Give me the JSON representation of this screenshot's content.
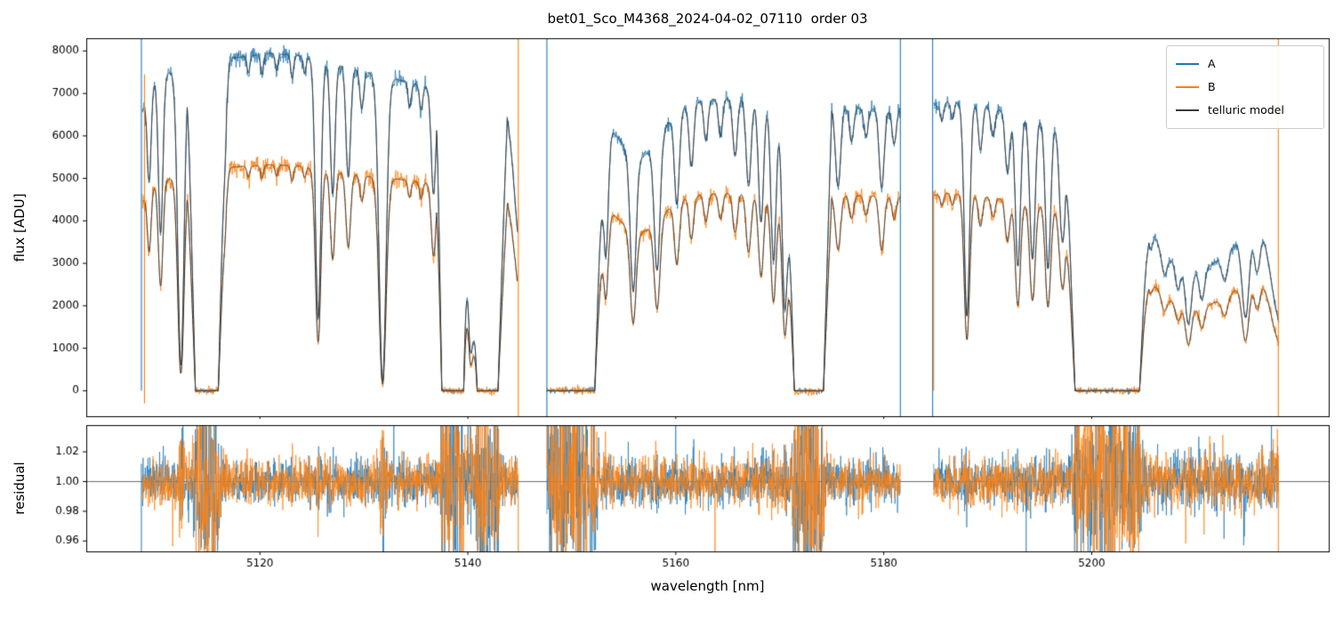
{
  "chart_data": [
    {
      "type": "line",
      "title": "bet01_Sco_M4368_2024-04-02_07110  order 03",
      "ylabel": "flux [ADU]",
      "xlim": [
        5103.3,
        5222.8
      ],
      "ylim": [
        -600,
        8300
      ],
      "xticks": [
        5120,
        5140,
        5160,
        5180,
        5200
      ],
      "xtick_labels": [
        "5120",
        "5140",
        "5160",
        "5180",
        "5200"
      ],
      "yticks": [
        0,
        1000,
        2000,
        3000,
        4000,
        5000,
        6000,
        7000,
        8000
      ],
      "ytick_labels": [
        "0",
        "1000",
        "2000",
        "3000",
        "4000",
        "5000",
        "6000",
        "7000",
        "8000"
      ],
      "grid": false,
      "legend": {
        "position": "upper right",
        "entries": [
          "A",
          "B",
          "telluric model"
        ]
      },
      "series": [
        {
          "name": "A",
          "color": "#1f77b4"
        },
        {
          "name": "B",
          "color": "#ff7f0e"
        },
        {
          "name": "telluric model",
          "color": "#3a3a3a"
        }
      ],
      "segments_nm": [
        [
          5108.7,
          5144.8
        ],
        [
          5147.6,
          5181.6
        ],
        [
          5184.8,
          5218.0
        ]
      ],
      "continuum_A_ADU": [
        [
          5108.7,
          6600
        ],
        [
          5110,
          7400
        ],
        [
          5113,
          7620
        ],
        [
          5117,
          7820
        ],
        [
          5121,
          7950
        ],
        [
          5124,
          7880
        ],
        [
          5127,
          7720
        ],
        [
          5130,
          7520
        ],
        [
          5133,
          7340
        ],
        [
          5136,
          7150
        ],
        [
          5140,
          7000
        ],
        [
          5144.8,
          6900
        ],
        [
          5147.6,
          6520
        ],
        [
          5151,
          6560
        ],
        [
          5155,
          6660
        ],
        [
          5159,
          6760
        ],
        [
          5163,
          6860
        ],
        [
          5166,
          6900
        ],
        [
          5169,
          6820
        ],
        [
          5173,
          6720
        ],
        [
          5177,
          6660
        ],
        [
          5181.6,
          6600
        ],
        [
          5184.8,
          6650
        ],
        [
          5186,
          6800
        ],
        [
          5189,
          6760
        ],
        [
          5192,
          6560
        ],
        [
          5195,
          6420
        ],
        [
          5199,
          6260
        ],
        [
          5203,
          6160
        ],
        [
          5208,
          6100
        ],
        [
          5213,
          6050
        ],
        [
          5218,
          6000
        ]
      ],
      "continuum_B_ADU": [
        [
          5108.7,
          4450
        ],
        [
          5110,
          4900
        ],
        [
          5113,
          5120
        ],
        [
          5117,
          5260
        ],
        [
          5121,
          5320
        ],
        [
          5124,
          5290
        ],
        [
          5127,
          5160
        ],
        [
          5130,
          5060
        ],
        [
          5133,
          4990
        ],
        [
          5136,
          4890
        ],
        [
          5140,
          4810
        ],
        [
          5144.8,
          4760
        ],
        [
          5147.6,
          4460
        ],
        [
          5151,
          4490
        ],
        [
          5155,
          4530
        ],
        [
          5159,
          4580
        ],
        [
          5163,
          4630
        ],
        [
          5166,
          4660
        ],
        [
          5169,
          4640
        ],
        [
          5173,
          4610
        ],
        [
          5177,
          4600
        ],
        [
          5181.6,
          4580
        ],
        [
          5184.8,
          4600
        ],
        [
          5186,
          4650
        ],
        [
          5189,
          4610
        ],
        [
          5192,
          4490
        ],
        [
          5195,
          4390
        ],
        [
          5199,
          4290
        ],
        [
          5203,
          4230
        ],
        [
          5208,
          4190
        ],
        [
          5213,
          4150
        ],
        [
          5218,
          4100
        ]
      ],
      "telluric_absorption_lines": [
        [
          5109.35,
          0.3,
          0.18
        ],
        [
          5110.45,
          0.5,
          0.22
        ],
        [
          5112.4,
          0.92,
          0.3
        ],
        [
          5116.7,
          0.18,
          0.18
        ],
        [
          5118.9,
          0.05,
          0.14
        ],
        [
          5120.2,
          0.06,
          0.14
        ],
        [
          5121.6,
          0.05,
          0.14
        ],
        [
          5123.1,
          0.07,
          0.14
        ],
        [
          5124.3,
          0.05,
          0.14
        ],
        [
          5125.6,
          0.78,
          0.26
        ],
        [
          5127.0,
          0.4,
          0.22
        ],
        [
          5128.5,
          0.34,
          0.22
        ],
        [
          5129.8,
          0.12,
          0.18
        ],
        [
          5131.8,
          0.97,
          0.34
        ],
        [
          5134.4,
          0.08,
          0.15
        ],
        [
          5135.5,
          0.08,
          0.15
        ],
        [
          5136.7,
          0.35,
          0.22
        ],
        [
          5140.25,
          0.82,
          0.35
        ],
        [
          5145.2,
          0.55,
          0.7
        ],
        [
          5153.25,
          0.5,
          0.25
        ],
        [
          5155.9,
          0.58,
          0.28
        ],
        [
          5156.5,
          0.18,
          2.0
        ],
        [
          5158.2,
          0.52,
          0.28
        ],
        [
          5160.1,
          0.33,
          0.24
        ],
        [
          5161.5,
          0.22,
          0.22
        ],
        [
          5162.9,
          0.14,
          0.2
        ],
        [
          5164.3,
          0.13,
          0.2
        ],
        [
          5165.7,
          0.2,
          0.22
        ],
        [
          5167.0,
          0.3,
          0.24
        ],
        [
          5168.2,
          0.42,
          0.25
        ],
        [
          5169.4,
          0.55,
          0.26
        ],
        [
          5170.5,
          0.72,
          0.28
        ],
        [
          5175.6,
          0.28,
          0.25
        ],
        [
          5176.9,
          0.12,
          0.2
        ],
        [
          5178.3,
          0.1,
          0.2
        ],
        [
          5179.8,
          0.28,
          0.24
        ],
        [
          5181.0,
          0.12,
          0.2
        ],
        [
          5185.6,
          0.06,
          0.15
        ],
        [
          5186.6,
          0.06,
          0.15
        ],
        [
          5188.0,
          0.74,
          0.26
        ],
        [
          5189.3,
          0.16,
          0.2
        ],
        [
          5190.5,
          0.1,
          0.2
        ],
        [
          5191.9,
          0.22,
          0.22
        ],
        [
          5192.9,
          0.55,
          0.25
        ],
        [
          5194.3,
          0.52,
          0.26
        ],
        [
          5195.8,
          0.55,
          0.26
        ],
        [
          5197.2,
          0.45,
          0.3
        ],
        [
          5205.6,
          0.18,
          0.25
        ],
        [
          5206.5,
          0.2,
          1.2
        ],
        [
          5207.0,
          0.15,
          0.25
        ],
        [
          5208.3,
          0.2,
          0.25
        ],
        [
          5209.3,
          0.45,
          0.28
        ],
        [
          5209.5,
          0.5,
          3.0
        ],
        [
          5210.6,
          0.25,
          0.25
        ],
        [
          5212.8,
          0.2,
          0.3
        ],
        [
          5214.0,
          0.3,
          2.5
        ],
        [
          5214.8,
          0.55,
          0.35
        ],
        [
          5215.9,
          0.3,
          0.3
        ],
        [
          5218.3,
          0.72,
          1.2
        ]
      ],
      "saturated_bands_nm": [
        [
          5113.8,
          5116.0,
          0.8
        ],
        [
          5137.5,
          5139.6,
          0.5
        ],
        [
          5140.9,
          5142.9,
          0.9
        ],
        [
          5146.8,
          5152.2,
          0.9
        ],
        [
          5171.4,
          5174.2,
          0.8
        ],
        [
          5198.4,
          5204.6,
          0.9
        ]
      ],
      "edge_artifact_spikes": [
        {
          "x": 5108.6,
          "series": "A",
          "y0": 0,
          "y1": 8300
        },
        {
          "x": 5108.9,
          "series": "B",
          "y0": -300,
          "y1": 7450
        },
        {
          "x": 5144.85,
          "series": "B",
          "y0": -600,
          "y1": 8300
        },
        {
          "x": 5147.6,
          "series": "A",
          "y0": -600,
          "y1": 8300
        },
        {
          "x": 5181.6,
          "series": "A",
          "y0": -600,
          "y1": 8300
        },
        {
          "x": 5184.7,
          "series": "A",
          "y0": -600,
          "y1": 8300
        },
        {
          "x": 5184.8,
          "series": "B",
          "y0": 0,
          "y1": 4700
        },
        {
          "x": 5217.95,
          "series": "B",
          "y0": -600,
          "y1": 8300
        }
      ],
      "noise": {
        "A_rel": 0.009,
        "A_floor_ADU": 30,
        "B_rel": 0.011,
        "B_floor_ADU": 45
      }
    },
    {
      "type": "line",
      "ylabel": "residual",
      "xlabel": "wavelength [nm]",
      "ylim": [
        0.953,
        1.038
      ],
      "yticks": [
        0.96,
        0.98,
        1.0,
        1.02
      ],
      "ytick_labels": [
        "0.96",
        "0.98",
        "1.00",
        "1.02"
      ],
      "reference_line_y": 1.0,
      "series": [
        {
          "name": "A",
          "color": "#1f77b4"
        },
        {
          "name": "B",
          "color": "#ff7f0e"
        }
      ],
      "noise_model": {
        "base_sigma": 0.005,
        "low_flux_coeff": 0.003
      },
      "edge_artifact_spikes": [
        {
          "x": 5108.6,
          "series": "A",
          "y0": 0.953,
          "y1": 1.012
        },
        {
          "x": 5144.85,
          "series": "B",
          "y0": 0.953,
          "y1": 1.005
        },
        {
          "x": 5193.7,
          "series": "A",
          "y0": 0.953,
          "y1": 1.0
        },
        {
          "x": 5198.35,
          "series": "A",
          "y0": 0.953,
          "y1": 1.006
        },
        {
          "x": 5217.95,
          "series": "B",
          "y0": 0.953,
          "y1": 1.01
        }
      ]
    }
  ]
}
